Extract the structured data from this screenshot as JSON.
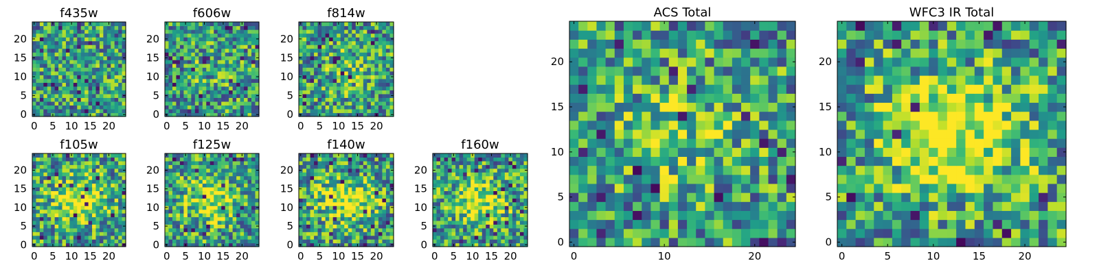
{
  "chart_data": [
    {
      "type": "heatmap",
      "title": "f435w",
      "xlim": [
        0,
        24
      ],
      "ylim": [
        0,
        24
      ],
      "xticks": [
        "0",
        "5",
        "10",
        "15",
        "20"
      ],
      "yticks": [
        "0",
        "5",
        "10",
        "15",
        "20"
      ],
      "colormap": "viridis",
      "seed": 11,
      "blob_strength": 0.0
    },
    {
      "type": "heatmap",
      "title": "f606w",
      "xlim": [
        0,
        24
      ],
      "ylim": [
        0,
        24
      ],
      "xticks": [
        "0",
        "5",
        "10",
        "15",
        "20"
      ],
      "yticks": [
        "0",
        "5",
        "10",
        "15",
        "20"
      ],
      "colormap": "viridis",
      "seed": 23,
      "blob_strength": 0.08
    },
    {
      "type": "heatmap",
      "title": "f814w",
      "xlim": [
        0,
        24
      ],
      "ylim": [
        0,
        24
      ],
      "xticks": [
        "0",
        "5",
        "10",
        "15",
        "20"
      ],
      "yticks": [
        "0",
        "5",
        "10",
        "15",
        "20"
      ],
      "colormap": "viridis",
      "seed": 37,
      "blob_strength": 0.15
    },
    {
      "type": "heatmap",
      "title": "f105w",
      "xlim": [
        0,
        24
      ],
      "ylim": [
        0,
        24
      ],
      "xticks": [
        "0",
        "5",
        "10",
        "15",
        "20"
      ],
      "yticks": [
        "0",
        "5",
        "10",
        "15",
        "20"
      ],
      "colormap": "viridis",
      "seed": 41,
      "blob_strength": 0.45
    },
    {
      "type": "heatmap",
      "title": "f125w",
      "xlim": [
        0,
        24
      ],
      "ylim": [
        0,
        24
      ],
      "xticks": [
        "0",
        "5",
        "10",
        "15",
        "20"
      ],
      "yticks": [
        "0",
        "5",
        "10",
        "15",
        "20"
      ],
      "colormap": "viridis",
      "seed": 53,
      "blob_strength": 0.4
    },
    {
      "type": "heatmap",
      "title": "f140w",
      "xlim": [
        0,
        24
      ],
      "ylim": [
        0,
        24
      ],
      "xticks": [
        "0",
        "5",
        "10",
        "15",
        "20"
      ],
      "yticks": [
        "0",
        "5",
        "10",
        "15",
        "20"
      ],
      "colormap": "viridis",
      "seed": 67,
      "blob_strength": 0.45
    },
    {
      "type": "heatmap",
      "title": "f160w",
      "xlim": [
        0,
        24
      ],
      "ylim": [
        0,
        24
      ],
      "xticks": [
        "0",
        "5",
        "10",
        "15",
        "20"
      ],
      "yticks": [
        "0",
        "5",
        "10",
        "15",
        "20"
      ],
      "colormap": "viridis",
      "seed": 71,
      "blob_strength": 0.4
    },
    {
      "type": "heatmap",
      "title": "ACS Total",
      "xlim": [
        0,
        24
      ],
      "ylim": [
        0,
        24
      ],
      "xticks": [
        "0",
        "10",
        "20"
      ],
      "yticks": [
        "0",
        "5",
        "10",
        "15",
        "20"
      ],
      "colormap": "viridis",
      "seed": 83,
      "blob_strength": 0.2
    },
    {
      "type": "heatmap",
      "title": "WFC3 IR Total",
      "xlim": [
        0,
        24
      ],
      "ylim": [
        0,
        24
      ],
      "xticks": [
        "0",
        "5",
        "10",
        "15",
        "20"
      ],
      "yticks": [
        "0",
        "5",
        "10",
        "15",
        "20"
      ],
      "colormap": "viridis",
      "seed": 97,
      "blob_strength": 0.55
    }
  ]
}
